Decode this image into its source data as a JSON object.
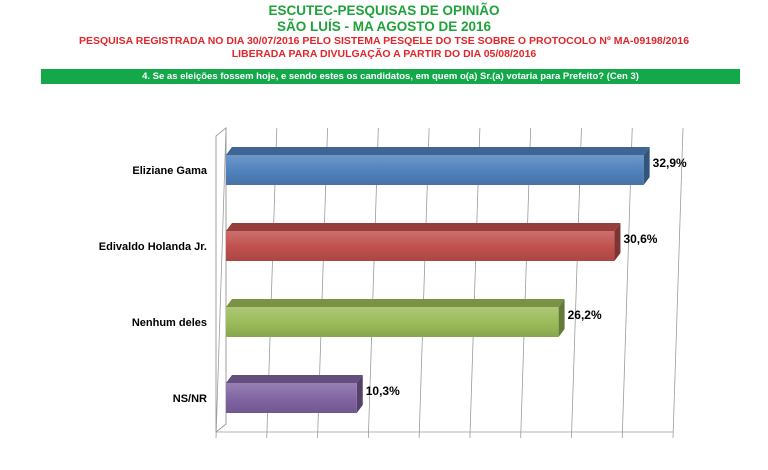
{
  "header": {
    "title": "ESCUTEC-PESQUISAS DE OPINIÃO",
    "subtitle": "SÃO LUÍS - MA AGOSTO DE 2016",
    "registration_line": "PESQUISA REGISTRADA NO DIA 30/07/2016 PELO SISTEMA PESQELE DO TSE SOBRE O PROTOCOLO Nº MA-09198/2016",
    "release_line": "LIBERADA PARA DIVULGAÇÃO A PARTIR DO DIA 05/08/2016"
  },
  "question": "4. Se as eleições fossem hoje, e sendo estes os candidatos, em quem o(a) Sr.(a) votaria para Prefeito? (Cen 3)",
  "colors": {
    "title_green": "#1fa23a",
    "header_red": "#e3262b",
    "question_band": "#13a84a"
  },
  "chart_data": {
    "type": "bar",
    "orientation": "horizontal",
    "style": "3d",
    "categories": [
      "Eliziane Gama",
      "Edivaldo Holanda Jr.",
      "Nenhum deles",
      "NS/NR"
    ],
    "values": [
      32.9,
      30.6,
      26.2,
      10.3
    ],
    "labels": [
      "32,9%",
      "30,6%",
      "26,2%",
      "10,3%"
    ],
    "bar_colors": [
      "#4f81bd",
      "#c0504d",
      "#9bbb59",
      "#8064a2"
    ],
    "xlim": [
      0,
      36
    ],
    "grid": true,
    "legend": "none"
  }
}
